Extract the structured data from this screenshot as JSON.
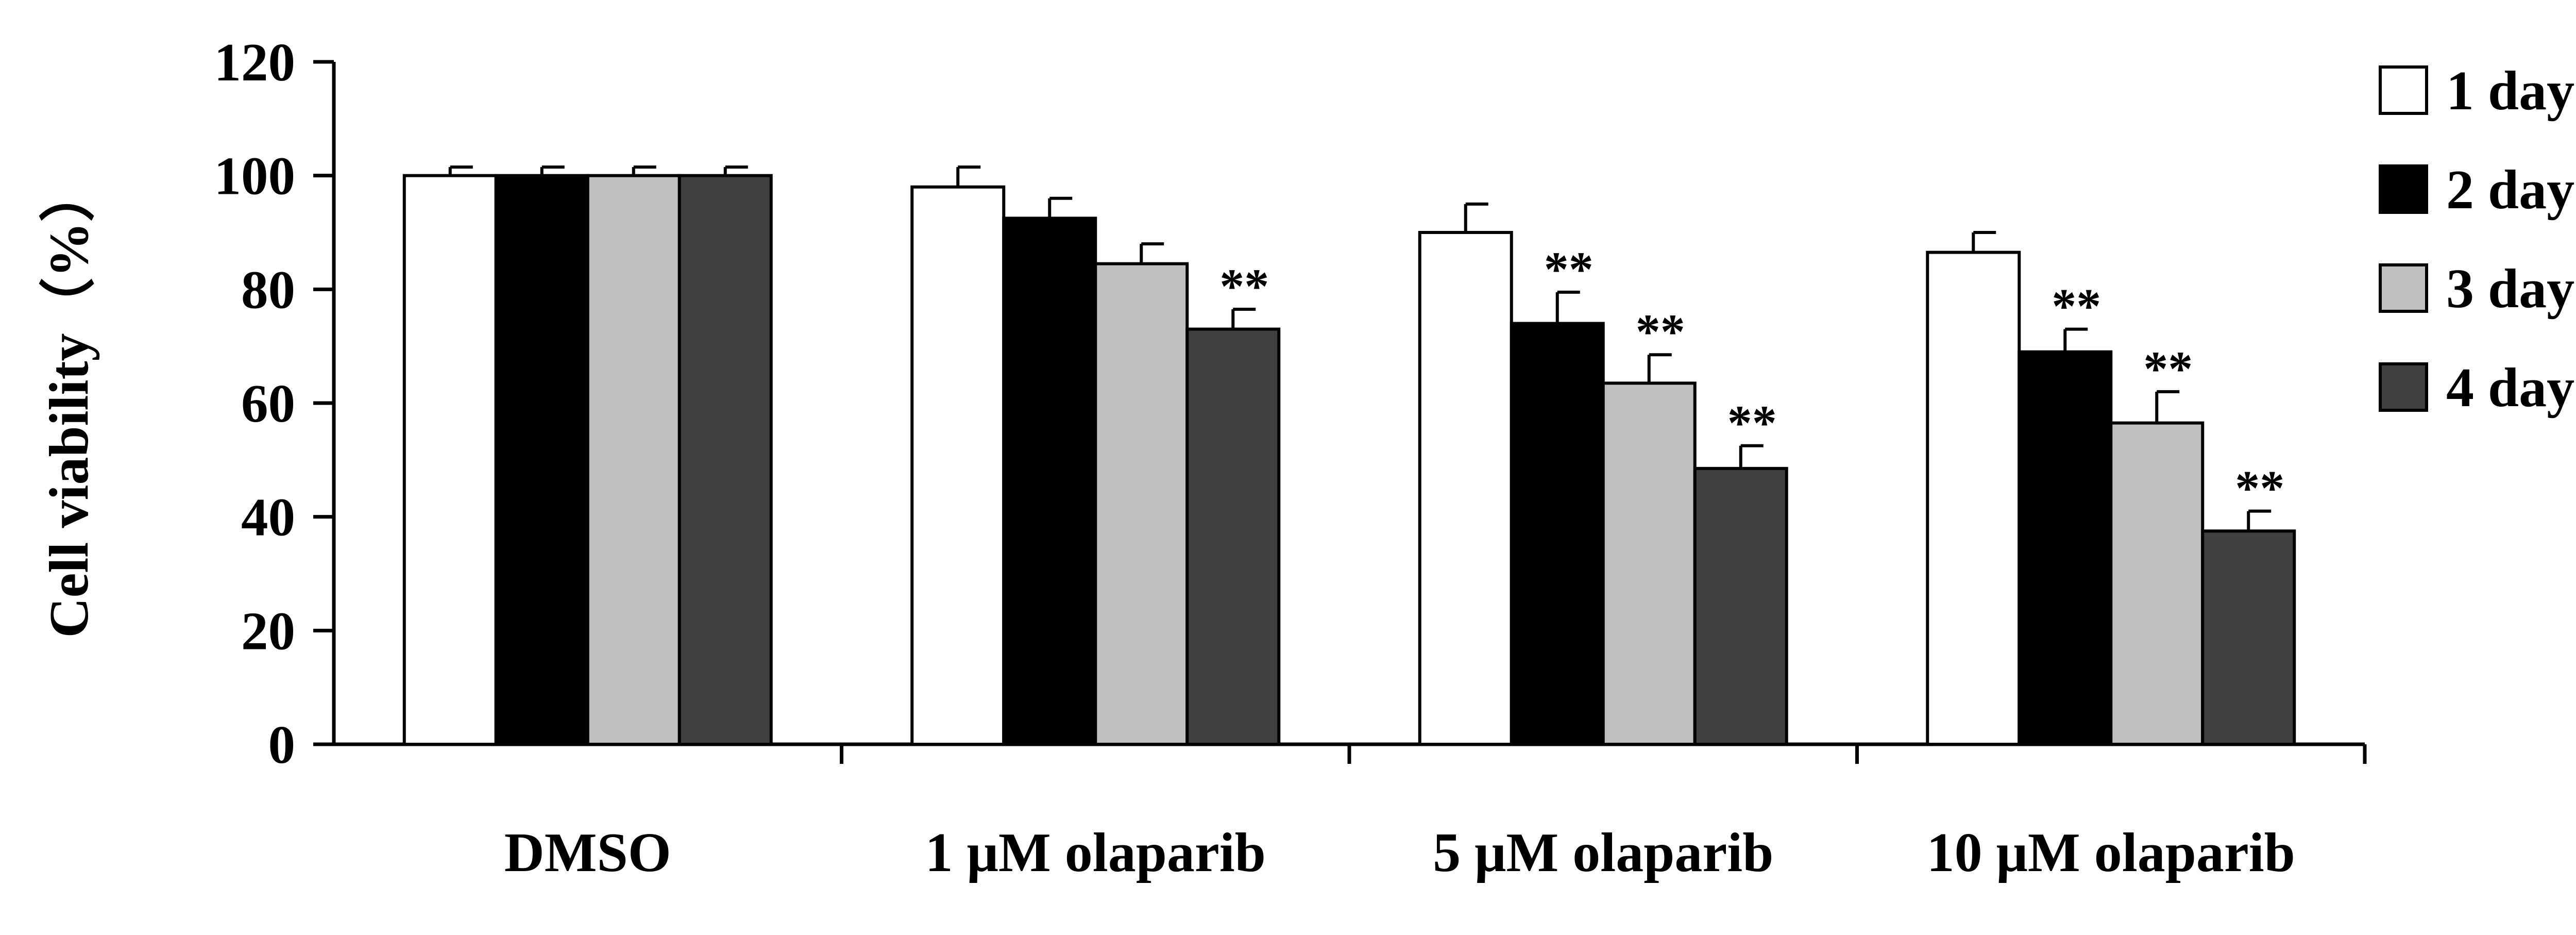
{
  "chart_data": {
    "type": "bar",
    "title": "",
    "xlabel": "",
    "ylabel": "Cell viability（%）",
    "ylim": [
      0,
      120
    ],
    "yticks": [
      0,
      20,
      40,
      60,
      80,
      100,
      120
    ],
    "categories": [
      "DMSO",
      "1 μM olaparib",
      "5 μM olaparib",
      "10 μM olaparib"
    ],
    "series": [
      {
        "name": "1 day",
        "color": "#ffffff",
        "values": [
          100,
          98,
          90,
          86.5
        ],
        "errors": [
          1.5,
          3.5,
          5,
          3.5
        ],
        "significance": [
          "",
          "",
          "",
          ""
        ]
      },
      {
        "name": "2 day",
        "color": "#000000",
        "values": [
          100,
          92.5,
          74,
          69
        ],
        "errors": [
          1.5,
          3.5,
          5.5,
          4
        ],
        "significance": [
          "",
          "",
          "**",
          "**"
        ]
      },
      {
        "name": "3 day",
        "color": "#c0c0c0",
        "values": [
          100,
          84.5,
          63.5,
          56.5
        ],
        "errors": [
          1.5,
          3.5,
          5,
          5.5
        ],
        "significance": [
          "",
          "",
          "**",
          "**"
        ]
      },
      {
        "name": "4 day",
        "color": "#404040",
        "values": [
          100,
          73,
          48.5,
          37.5
        ],
        "errors": [
          1.5,
          3.5,
          4,
          3.5
        ],
        "significance": [
          "",
          "**",
          "**",
          "**"
        ]
      }
    ],
    "legend_position": "top-right",
    "grid": false
  }
}
